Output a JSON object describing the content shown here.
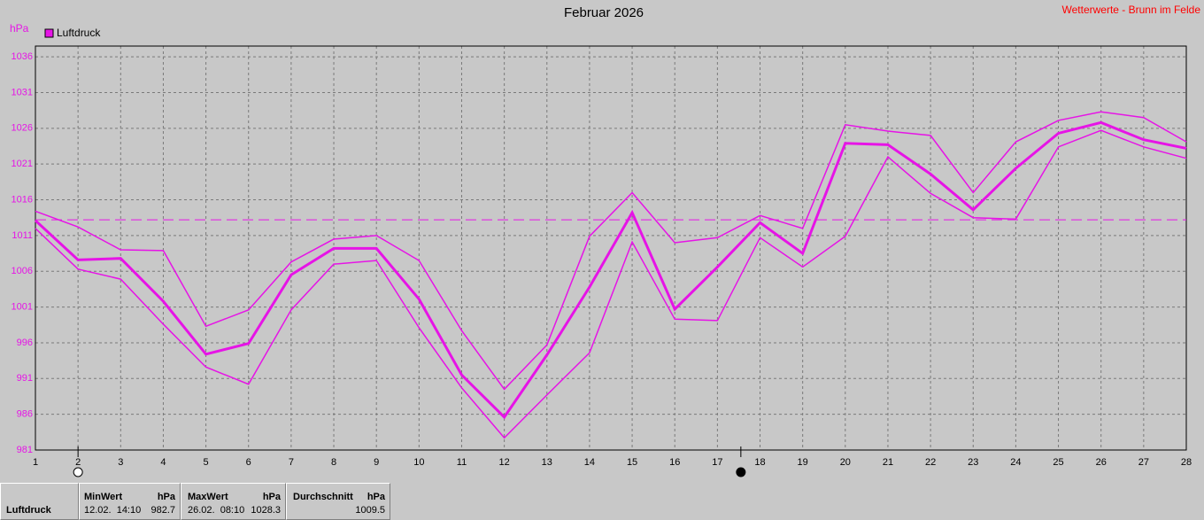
{
  "chart_data": {
    "type": "line",
    "title": "Februar 2026",
    "source": "Wetterwerte - Brunn im Felde",
    "y_unit": "hPa",
    "xlim": [
      1,
      28
    ],
    "xticks": [
      1,
      2,
      3,
      4,
      5,
      6,
      7,
      8,
      9,
      10,
      11,
      12,
      13,
      14,
      15,
      16,
      17,
      18,
      19,
      20,
      21,
      22,
      23,
      24,
      25,
      26,
      27,
      28
    ],
    "ylim": [
      981,
      1037.5
    ],
    "yticks": [
      981,
      986,
      991,
      996,
      1001,
      1006,
      1011,
      1016,
      1021,
      1026,
      1031,
      1036
    ],
    "grid": true,
    "x": [
      1,
      2,
      3,
      4,
      5,
      6,
      7,
      8,
      9,
      10,
      11,
      12,
      13,
      14,
      15,
      16,
      17,
      18,
      19,
      20,
      21,
      22,
      23,
      24,
      25,
      26,
      27,
      28
    ],
    "series": [
      {
        "color": "#e614e6",
        "width": 1.5,
        "values": [
          1014.4,
          1012.2,
          1009.0,
          1008.9,
          998.3,
          1000.6,
          1007.3,
          1010.5,
          1011.0,
          1007.5,
          997.7,
          989.5,
          995.7,
          1010.9,
          1017.0,
          1010.0,
          1010.7,
          1013.8,
          1012.0,
          1026.5,
          1025.6,
          1025.0,
          1017.0,
          1024.1,
          1027.1,
          1028.3,
          1027.5,
          1024.1
        ]
      },
      {
        "name": "Luftdruck",
        "color": "#e614e6",
        "width": 3,
        "values": [
          1013.1,
          1007.6,
          1007.8,
          1001.8,
          994.4,
          995.9,
          1005.5,
          1009.2,
          1009.2,
          1002.1,
          991.5,
          985.6,
          994.3,
          1003.8,
          1014.2,
          1000.7,
          1006.6,
          1012.8,
          1008.5,
          1023.9,
          1023.7,
          1019.6,
          1014.6,
          1020.4,
          1025.3,
          1026.8,
          1024.4,
          1023.2
        ]
      },
      {
        "color": "#e614e6",
        "width": 1.5,
        "values": [
          1012.0,
          1006.3,
          1004.9,
          998.6,
          992.6,
          990.2,
          1000.6,
          1007.0,
          1007.5,
          998.1,
          989.7,
          982.7,
          988.7,
          994.6,
          1010.1,
          999.3,
          999.1,
          1010.7,
          1006.6,
          1010.9,
          1022.0,
          1016.9,
          1013.5,
          1013.3,
          1023.4,
          1025.7,
          1023.4,
          1021.8
        ]
      }
    ],
    "reference_line": 1013.2,
    "markers": [
      {
        "x": 2,
        "filled": false
      },
      {
        "x": 17.55,
        "filled": true
      }
    ]
  },
  "stats": {
    "label": "Luftdruck",
    "min": {
      "header": "MinWert",
      "unit": "hPa",
      "time": "12.02.  14:10",
      "value": 982.7
    },
    "max": {
      "header": "MaxWert",
      "unit": "hPa",
      "time": "26.02.  08:10",
      "value": 1028.3
    },
    "avg": {
      "header": "Durchschnitt",
      "unit": "hPa",
      "value": 1009.5
    }
  }
}
